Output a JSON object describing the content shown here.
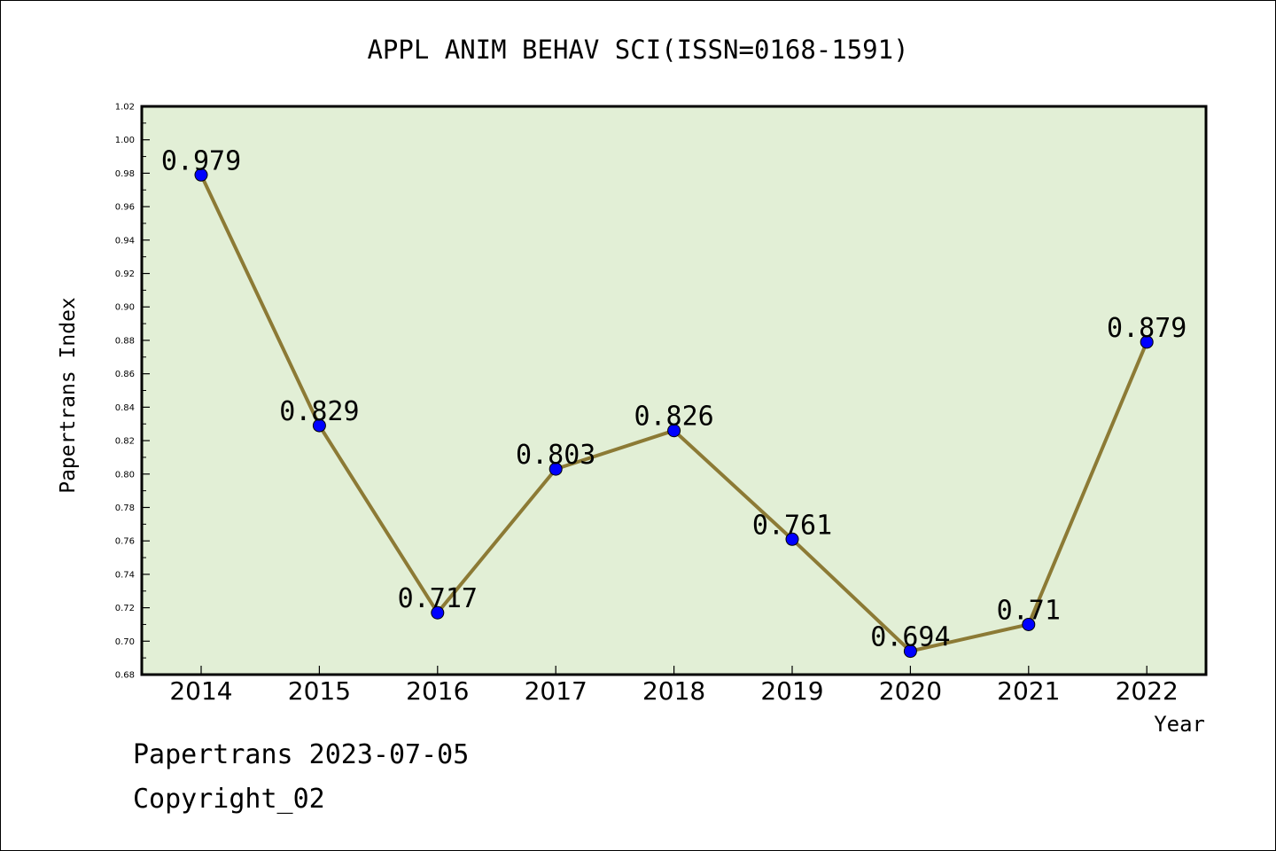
{
  "chart_data": {
    "type": "line",
    "title": "APPL ANIM BEHAV SCI(ISSN=0168-1591)",
    "xlabel": "Year",
    "ylabel": "Papertrans Index",
    "categories": [
      "2014",
      "2015",
      "2016",
      "2017",
      "2018",
      "2019",
      "2020",
      "2021",
      "2022"
    ],
    "values": [
      0.979,
      0.829,
      0.717,
      0.803,
      0.826,
      0.761,
      0.694,
      0.71,
      0.879
    ],
    "data_labels": [
      "0.979",
      "0.829",
      "0.717",
      "0.803",
      "0.826",
      "0.761",
      "0.694",
      "0.71",
      "0.879"
    ],
    "ylim": [
      0.68,
      1.02
    ],
    "yticks": [
      "0.68",
      "0.70",
      "0.72",
      "0.74",
      "0.76",
      "0.78",
      "0.80",
      "0.82",
      "0.84",
      "0.86",
      "0.88",
      "0.90",
      "0.92",
      "0.94",
      "0.96",
      "0.98",
      "1.00",
      "1.02"
    ],
    "grid": false,
    "colors": {
      "plot_background": "#e2efd6",
      "line": "#8c7a35",
      "marker": "#0000ff",
      "axis": "#000000"
    }
  },
  "footer": {
    "line1": "Papertrans 2023-07-05",
    "line2": "Copyright_02"
  }
}
